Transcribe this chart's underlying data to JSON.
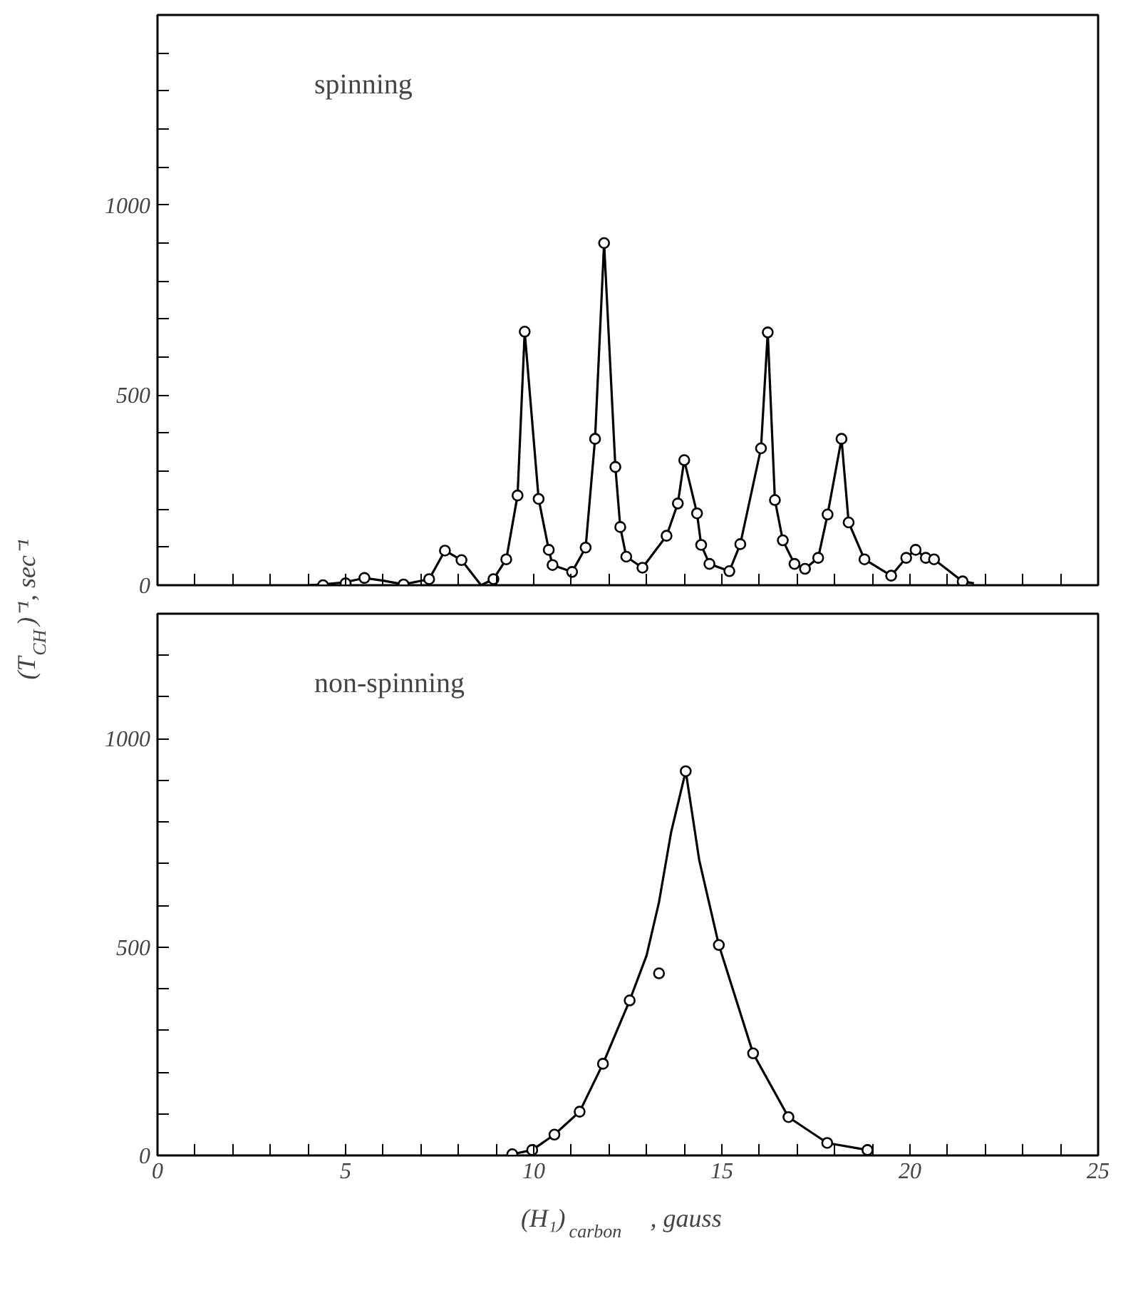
{
  "chart_data": [
    {
      "type": "scatter",
      "annotations": [
        "spinning"
      ],
      "ylabel": "(T$_{CH}$)⁻¹, sec⁻¹",
      "xlim": [
        0,
        25
      ],
      "ylim": [
        0,
        1500
      ],
      "tick_labels": "y",
      "grid": false,
      "xticks": [
        {
          "value": 0,
          "label": null
        },
        {
          "value": 1,
          "label": null
        },
        {
          "value": 2,
          "label": null
        },
        {
          "value": 3,
          "label": null
        },
        {
          "value": 4,
          "label": null
        },
        {
          "value": 5,
          "label": null
        },
        {
          "value": 6,
          "label": null
        },
        {
          "value": 7,
          "label": null
        },
        {
          "value": 8,
          "label": null
        },
        {
          "value": 9,
          "label": null
        },
        {
          "value": 10,
          "label": null
        },
        {
          "value": 11,
          "label": null
        },
        {
          "value": 12,
          "label": null
        },
        {
          "value": 13,
          "label": null
        },
        {
          "value": 14,
          "label": null
        },
        {
          "value": 15,
          "label": null
        },
        {
          "value": 16,
          "label": null
        },
        {
          "value": 17,
          "label": null
        },
        {
          "value": 18,
          "label": null
        },
        {
          "value": 19,
          "label": null
        },
        {
          "value": 20,
          "label": null
        },
        {
          "value": 21,
          "label": null
        },
        {
          "value": 22,
          "label": null
        },
        {
          "value": 23,
          "label": null
        },
        {
          "value": 24,
          "label": null
        },
        {
          "value": 25,
          "label": null
        }
      ],
      "yticks": [
        0,
        {
          "value": 100,
          "label": null
        },
        {
          "value": 200,
          "label": null
        },
        {
          "value": 300,
          "label": null
        },
        {
          "value": 400,
          "label": null
        },
        500,
        {
          "value": 600,
          "label": null
        },
        {
          "value": 700,
          "label": null
        },
        {
          "value": 800,
          "label": null
        },
        {
          "value": 900,
          "label": null
        },
        1000,
        {
          "value": 1100,
          "label": null
        },
        {
          "value": 1200,
          "label": null
        },
        {
          "value": 1300,
          "label": null
        },
        {
          "value": 1400,
          "label": null
        }
      ],
      "series": [
        {
          "type": "line",
          "color": "#000000",
          "line_style": "solid",
          "x": [
            4.0,
            4.4,
            5.0,
            5.5,
            6.0,
            6.54,
            7.22,
            7.64,
            8.08,
            8.6,
            8.93,
            9.27,
            9.57,
            9.76,
            10.13,
            10.4,
            10.5,
            11.02,
            11.38,
            11.63,
            11.87,
            12.17,
            12.3,
            12.46,
            12.89,
            13.53,
            13.83,
            14.0,
            14.34,
            14.45,
            14.67,
            15.2,
            15.49,
            16.04,
            16.22,
            16.41,
            16.62,
            16.93,
            17.21,
            17.56,
            17.81,
            18.18,
            18.37,
            18.79,
            19.5,
            19.9,
            20.15,
            20.42,
            20.64,
            21.4,
            21.7
          ],
          "values": [
            0,
            2,
            8,
            19,
            12,
            2,
            16,
            91,
            66,
            0,
            16,
            68,
            236,
            667,
            227,
            93,
            53,
            35,
            99,
            385,
            900,
            311,
            153,
            75,
            46,
            130,
            215,
            329,
            189,
            106,
            56,
            37,
            108,
            360,
            665,
            224,
            118,
            56,
            43,
            72,
            186,
            385,
            165,
            68,
            25,
            72,
            93,
            72,
            68,
            10,
            5
          ]
        },
        {
          "color": "#000000",
          "marker": "circle",
          "x": [
            4.4,
            5.0,
            5.5,
            6.54,
            7.22,
            7.64,
            8.08,
            8.93,
            9.27,
            9.57,
            9.76,
            10.13,
            10.4,
            10.5,
            11.02,
            11.38,
            11.63,
            11.87,
            12.17,
            12.3,
            12.46,
            12.89,
            13.53,
            13.83,
            14.0,
            14.34,
            14.45,
            14.67,
            15.2,
            15.49,
            16.04,
            16.22,
            16.41,
            16.62,
            16.93,
            17.21,
            17.56,
            17.81,
            18.18,
            18.37,
            18.79,
            19.5,
            19.9,
            20.15,
            20.42,
            20.64,
            21.4
          ],
          "values": [
            0,
            5,
            19,
            2,
            16,
            91,
            66,
            16,
            68,
            236,
            667,
            227,
            93,
            53,
            35,
            99,
            385,
            900,
            311,
            153,
            75,
            46,
            130,
            215,
            329,
            189,
            106,
            56,
            37,
            108,
            360,
            665,
            224,
            118,
            56,
            43,
            72,
            186,
            385,
            165,
            68,
            25,
            72,
            93,
            72,
            68,
            10
          ]
        }
      ]
    },
    {
      "type": "scatter",
      "annotations": [
        "non-spinning"
      ],
      "xlabel": "(H₁)$_{carbon}$, gauss",
      "xlim": [
        0,
        25
      ],
      "ylim": [
        0,
        1300
      ],
      "grid": false,
      "xticks": [
        0,
        {
          "value": 1,
          "label": null
        },
        {
          "value": 2,
          "label": null
        },
        {
          "value": 3,
          "label": null
        },
        {
          "value": 4,
          "label": null
        },
        5,
        {
          "value": 6,
          "label": null
        },
        {
          "value": 7,
          "label": null
        },
        {
          "value": 8,
          "label": null
        },
        {
          "value": 9,
          "label": null
        },
        10,
        {
          "value": 11,
          "label": null
        },
        {
          "value": 12,
          "label": null
        },
        {
          "value": 13,
          "label": null
        },
        {
          "value": 14,
          "label": null
        },
        15,
        {
          "value": 16,
          "label": null
        },
        {
          "value": 17,
          "label": null
        },
        {
          "value": 18,
          "label": null
        },
        {
          "value": 19,
          "label": null
        },
        20,
        {
          "value": 21,
          "label": null
        },
        {
          "value": 22,
          "label": null
        },
        {
          "value": 23,
          "label": null
        },
        {
          "value": 24,
          "label": null
        },
        25
      ],
      "yticks": [
        0,
        {
          "value": 100,
          "label": null
        },
        {
          "value": 200,
          "label": null
        },
        {
          "value": 300,
          "label": null
        },
        {
          "value": 400,
          "label": null
        },
        500,
        {
          "value": 600,
          "label": null
        },
        {
          "value": 700,
          "label": null
        },
        {
          "value": 800,
          "label": null
        },
        {
          "value": 900,
          "label": null
        },
        1000,
        {
          "value": 1100,
          "label": null
        },
        {
          "value": 1200,
          "label": null
        }
      ],
      "series": [
        {
          "type": "line",
          "color": "#000000",
          "line_style": "solid",
          "x": [
            9.43,
            9.96,
            10.55,
            11.22,
            11.84,
            12.55,
            13.0,
            13.33,
            13.65,
            14.04,
            14.4,
            14.92,
            15.83,
            16.77,
            17.8,
            18.87
          ],
          "values": [
            3,
            13,
            50,
            105,
            220,
            372,
            480,
            608,
            775,
            922,
            708,
            505,
            245,
            92,
            30,
            13
          ]
        },
        {
          "color": "#000000",
          "marker": "circle",
          "x": [
            9.43,
            9.96,
            10.55,
            11.22,
            11.84,
            12.55,
            13.33,
            14.04,
            14.92,
            15.83,
            16.77,
            17.8,
            18.87
          ],
          "values": [
            3,
            13,
            50,
            105,
            220,
            372,
            437,
            922,
            505,
            245,
            92,
            30,
            13
          ]
        }
      ]
    }
  ]
}
